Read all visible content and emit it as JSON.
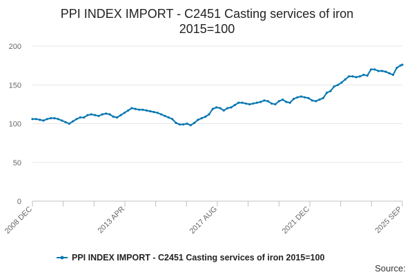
{
  "chart_data": {
    "type": "line",
    "title": "PPI INDEX IMPORT - C2451 Casting services of iron",
    "subtitle": "2015=100",
    "xlabel": "",
    "ylabel": "",
    "ylim": [
      0,
      200
    ],
    "y_ticks": [
      0,
      50,
      100,
      150,
      200
    ],
    "x_tick_labels": [
      "2008 DEC",
      "2013 APR",
      "2017 AUG",
      "2021 DEC",
      "2025 SEP"
    ],
    "x_range": [
      "2008-12",
      "2025-09"
    ],
    "grid": true,
    "legend_position": "bottom",
    "source_label": "Source:",
    "series": [
      {
        "name": "PPI INDEX IMPORT - C2451 Casting services of iron 2015=100",
        "color": "#0075b0",
        "points": [
          [
            "2008-12",
            106
          ],
          [
            "2009-02",
            106
          ],
          [
            "2009-04",
            105
          ],
          [
            "2009-06",
            104
          ],
          [
            "2009-08",
            106
          ],
          [
            "2009-10",
            107
          ],
          [
            "2009-12",
            107
          ],
          [
            "2010-02",
            106
          ],
          [
            "2010-04",
            104
          ],
          [
            "2010-06",
            102
          ],
          [
            "2010-08",
            100
          ],
          [
            "2010-10",
            103
          ],
          [
            "2010-12",
            106
          ],
          [
            "2011-02",
            108
          ],
          [
            "2011-04",
            108
          ],
          [
            "2011-06",
            111
          ],
          [
            "2011-08",
            112
          ],
          [
            "2011-10",
            111
          ],
          [
            "2011-12",
            110
          ],
          [
            "2012-02",
            112
          ],
          [
            "2012-04",
            113
          ],
          [
            "2012-06",
            112
          ],
          [
            "2012-08",
            109
          ],
          [
            "2012-10",
            108
          ],
          [
            "2012-12",
            111
          ],
          [
            "2013-02",
            114
          ],
          [
            "2013-04",
            117
          ],
          [
            "2013-06",
            120
          ],
          [
            "2013-08",
            119
          ],
          [
            "2013-10",
            118
          ],
          [
            "2013-12",
            118
          ],
          [
            "2014-02",
            117
          ],
          [
            "2014-04",
            116
          ],
          [
            "2014-06",
            115
          ],
          [
            "2014-08",
            114
          ],
          [
            "2014-10",
            112
          ],
          [
            "2014-12",
            110
          ],
          [
            "2015-02",
            108
          ],
          [
            "2015-04",
            106
          ],
          [
            "2015-06",
            101
          ],
          [
            "2015-08",
            99
          ],
          [
            "2015-10",
            99
          ],
          [
            "2015-12",
            100
          ],
          [
            "2016-02",
            98
          ],
          [
            "2016-04",
            101
          ],
          [
            "2016-06",
            105
          ],
          [
            "2016-08",
            107
          ],
          [
            "2016-10",
            109
          ],
          [
            "2016-12",
            112
          ],
          [
            "2017-02",
            119
          ],
          [
            "2017-04",
            121
          ],
          [
            "2017-06",
            120
          ],
          [
            "2017-08",
            117
          ],
          [
            "2017-10",
            120
          ],
          [
            "2017-12",
            121
          ],
          [
            "2018-02",
            124
          ],
          [
            "2018-04",
            127
          ],
          [
            "2018-06",
            127
          ],
          [
            "2018-08",
            126
          ],
          [
            "2018-10",
            125
          ],
          [
            "2018-12",
            126
          ],
          [
            "2019-02",
            127
          ],
          [
            "2019-04",
            128
          ],
          [
            "2019-06",
            130
          ],
          [
            "2019-08",
            129
          ],
          [
            "2019-10",
            126
          ],
          [
            "2019-12",
            125
          ],
          [
            "2020-02",
            129
          ],
          [
            "2020-04",
            131
          ],
          [
            "2020-06",
            128
          ],
          [
            "2020-08",
            127
          ],
          [
            "2020-10",
            132
          ],
          [
            "2020-12",
            134
          ],
          [
            "2021-02",
            135
          ],
          [
            "2021-04",
            134
          ],
          [
            "2021-06",
            133
          ],
          [
            "2021-08",
            130
          ],
          [
            "2021-10",
            129
          ],
          [
            "2021-12",
            131
          ],
          [
            "2022-02",
            133
          ],
          [
            "2022-04",
            140
          ],
          [
            "2022-06",
            142
          ],
          [
            "2022-08",
            148
          ],
          [
            "2022-10",
            150
          ],
          [
            "2022-12",
            153
          ],
          [
            "2023-02",
            157
          ],
          [
            "2023-04",
            161
          ],
          [
            "2023-06",
            161
          ],
          [
            "2023-08",
            160
          ],
          [
            "2023-10",
            161
          ],
          [
            "2023-12",
            163
          ],
          [
            "2024-02",
            162
          ],
          [
            "2024-04",
            170
          ],
          [
            "2024-06",
            170
          ],
          [
            "2024-08",
            168
          ],
          [
            "2024-10",
            168
          ],
          [
            "2024-12",
            167
          ],
          [
            "2025-02",
            165
          ],
          [
            "2025-04",
            163
          ],
          [
            "2025-06",
            172
          ],
          [
            "2025-08",
            175
          ],
          [
            "2025-09",
            176
          ]
        ]
      }
    ]
  }
}
